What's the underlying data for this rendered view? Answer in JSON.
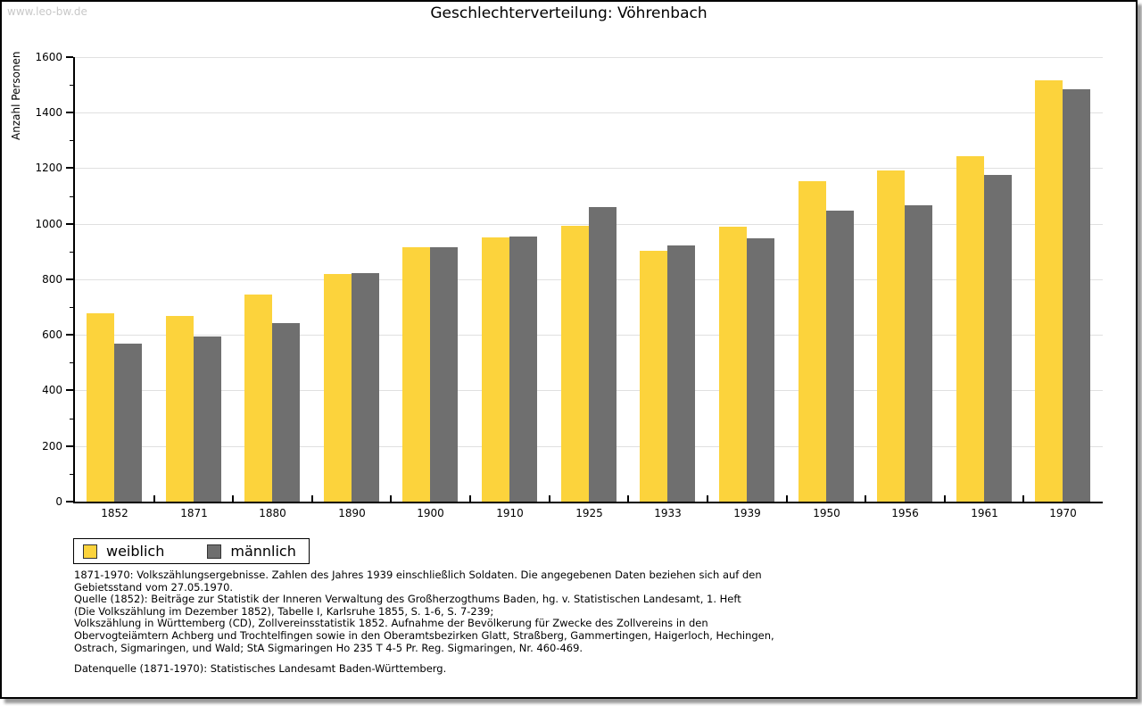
{
  "watermark": "www.leo-bw.de",
  "header": {
    "title": "Geschlechterverteilung: Vöhrenbach"
  },
  "chart_data": {
    "type": "bar",
    "title": "Geschlechterverteilung: Vöhrenbach",
    "ylabel": "Anzahl Personen",
    "xlabel": "",
    "ylim": [
      0,
      1600
    ],
    "ytick_step": 200,
    "minor_tick_step": 100,
    "grid": true,
    "legend_position": "bottom-left",
    "categories": [
      "1852",
      "1871",
      "1880",
      "1890",
      "1900",
      "1910",
      "1925",
      "1933",
      "1939",
      "1950",
      "1956",
      "1961",
      "1970"
    ],
    "series": [
      {
        "name": "weiblich",
        "color": "#FCD33C",
        "values": [
          678,
          668,
          745,
          820,
          915,
          952,
          993,
          903,
          990,
          1152,
          1192,
          1242,
          1518
        ]
      },
      {
        "name": "männlich",
        "color": "#6F6F6F",
        "values": [
          570,
          595,
          643,
          821,
          916,
          954,
          1060,
          921,
          947,
          1046,
          1066,
          1176,
          1484
        ]
      }
    ]
  },
  "footnotes": {
    "lines": [
      "1871-1970: Volkszählungsergebnisse. Zahlen des Jahres 1939 einschließlich Soldaten. Die angegebenen Daten beziehen sich auf den",
      "Gebietsstand vom 27.05.1970.",
      "Quelle (1852): Beiträge zur Statistik der Inneren Verwaltung des Großherzogthums Baden, hg. v. Statistischen Landesamt, 1. Heft",
      "(Die Volkszählung im Dezember 1852), Tabelle I, Karlsruhe 1855, S. 1-6, S. 7-239;",
      "Volkszählung in Württemberg (CD), Zollvereinsstatistik 1852. Aufnahme der Bevölkerung für Zwecke des Zollvereins in den",
      "Obervogteiämtern Achberg und Trochtelfingen sowie in den Oberamtsbezirken Glatt, Straßberg, Gammertingen, Haigerloch, Hechingen,",
      "Ostrach, Sigmaringen, und Wald; StA Sigmaringen Ho 235 T 4-5 Pr. Reg. Sigmaringen, Nr. 460-469."
    ],
    "datasource": "Datenquelle (1871-1970): Statistisches Landesamt Baden-Württemberg."
  },
  "colors": {
    "female_bar": "#FCD33C",
    "male_bar": "#6F6F6F",
    "gridline": "#E0E0E0",
    "watermark": "#C8C8C8",
    "axis": "#000000",
    "frame_shadow": "#999999"
  }
}
